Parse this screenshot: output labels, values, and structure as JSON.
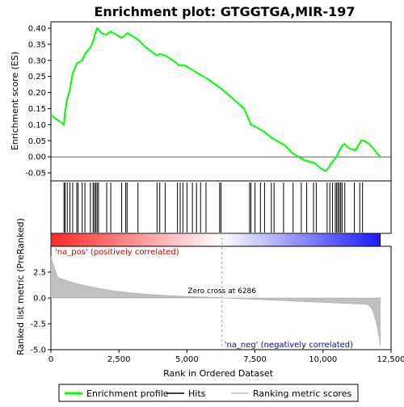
{
  "chart_data": {
    "type": "line",
    "title": "Enrichment plot: GTGGTGA,MIR-197",
    "xlabel": "Rank in Ordered Dataset",
    "ylabel_top": "Enrichment score (ES)",
    "ylabel_bottom": "Ranked list metric (PreRanked)",
    "xlim": [
      0,
      12500
    ],
    "x_ticks": [
      0,
      2500,
      5000,
      7500,
      10000,
      12500
    ],
    "x_tick_labels": [
      "0",
      "2,500",
      "5,000",
      "7,500",
      "10,000",
      "12,500"
    ],
    "es_ylim": [
      -0.075,
      0.42
    ],
    "es_ticks": [
      -0.05,
      0.0,
      0.05,
      0.1,
      0.15,
      0.2,
      0.25,
      0.3,
      0.35,
      0.4
    ],
    "es_tick_labels": [
      "-0.05",
      "0.00",
      "0.05",
      "0.10",
      "0.15",
      "0.20",
      "0.25",
      "0.30",
      "0.35",
      "0.40"
    ],
    "metric_ylim": [
      -5.0,
      5.0
    ],
    "metric_ticks": [
      -5.0,
      -2.5,
      0.0,
      2.5
    ],
    "metric_tick_labels": [
      "-5.0",
      "-2.5",
      "0.0",
      "2.5"
    ],
    "n_genes": 12100,
    "zero_cross_rank": 6286,
    "series": [
      {
        "name": "Enrichment profile",
        "color": "#00ff00",
        "x": [
          0,
          480,
          520,
          600,
          700,
          800,
          950,
          1150,
          1250,
          1450,
          1550,
          1650,
          1700,
          1850,
          2050,
          2200,
          2400,
          2600,
          2750,
          2800,
          3000,
          3200,
          3500,
          3900,
          4000,
          4200,
          4500,
          4700,
          4900,
          5200,
          5500,
          5800,
          6286,
          6700,
          7100,
          7350,
          7600,
          7800,
          8100,
          8300,
          8600,
          8900,
          9100,
          9300,
          9500,
          9700,
          9900,
          10000,
          10100,
          10200,
          10300,
          10400,
          10500,
          10600,
          10700,
          10800,
          10900,
          11000,
          11200,
          11300,
          11400,
          11500,
          11700,
          12100
        ],
        "y": [
          0.13,
          0.1,
          0.14,
          0.18,
          0.21,
          0.26,
          0.29,
          0.3,
          0.32,
          0.34,
          0.36,
          0.39,
          0.4,
          0.385,
          0.38,
          0.39,
          0.38,
          0.37,
          0.38,
          0.385,
          0.375,
          0.365,
          0.34,
          0.315,
          0.32,
          0.315,
          0.3,
          0.285,
          0.285,
          0.27,
          0.255,
          0.24,
          0.21,
          0.18,
          0.15,
          0.1,
          0.09,
          0.08,
          0.06,
          0.05,
          0.035,
          0.01,
          0.0,
          -0.01,
          -0.015,
          -0.02,
          -0.035,
          -0.04,
          -0.045,
          -0.035,
          -0.02,
          -0.01,
          0.0,
          0.02,
          0.035,
          0.04,
          0.03,
          0.025,
          0.02,
          0.035,
          0.05,
          0.05,
          0.04,
          0.0
        ]
      }
    ],
    "hits": [
      480,
      520,
      600,
      700,
      800,
      950,
      1000,
      1150,
      1250,
      1450,
      1550,
      1600,
      1650,
      1700,
      1750,
      2050,
      2200,
      2600,
      2750,
      2800,
      3200,
      3900,
      4000,
      4200,
      4650,
      4750,
      4850,
      5000,
      5200,
      5350,
      5500,
      5700,
      6200,
      6250,
      7300,
      7350,
      7500,
      7700,
      7850,
      8100,
      8200,
      8550,
      8900,
      9200,
      9400,
      9650,
      9750,
      10150,
      10250,
      10350,
      10450,
      10500,
      10550,
      10600,
      10650,
      10700,
      10800,
      11150,
      11350,
      11450
    ],
    "annotations": {
      "pos_label": "'na_pos' (positively correlated)",
      "neg_label": "'na_neg' (negatively correlated)",
      "zero_cross_label": "Zero cross at 6286"
    },
    "legend": {
      "placement": "bottom",
      "items": [
        {
          "label": "Enrichment profile",
          "color": "#00ff00",
          "kind": "line"
        },
        {
          "label": "Hits",
          "color": "#000000",
          "kind": "line"
        },
        {
          "label": "Ranking metric scores",
          "color": "#c0c0c0",
          "kind": "line"
        }
      ]
    },
    "colors": {
      "pos_text": "#cc0000",
      "neg_text": "#0000cc",
      "metric_fill": "#c0c0c0",
      "grid_red": "#ff0000",
      "grid_blue": "#0000ff"
    }
  }
}
